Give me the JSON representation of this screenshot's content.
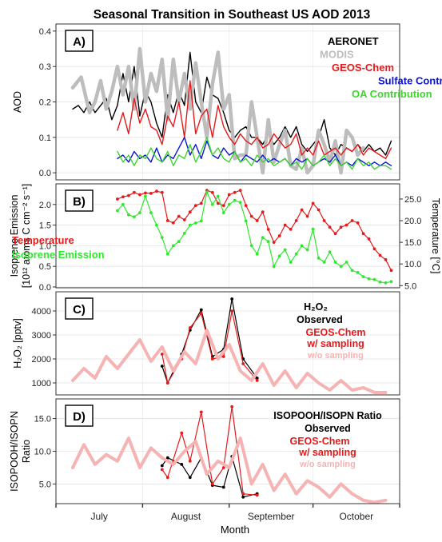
{
  "title": "Seasonal Transition in Southeast US AOD 2013",
  "x_axis": {
    "label": "Month",
    "month_labels": [
      "July",
      "August",
      "September",
      "October"
    ]
  },
  "colors": {
    "aeronet": "#000000",
    "modis": "#bdbdbd",
    "geos": "#e41a1c",
    "sulfate": "#0a14d8",
    "oa": "#3fd62b",
    "temperature": "#e41a1c",
    "isoprene": "#2ee82e",
    "observed": "#000000",
    "geos_sampling": "#e41a1c",
    "geos_nosampling": "#f6b3b3"
  },
  "chart_data": [
    {
      "type": "line",
      "panel": "A)",
      "ylabel": "AOD",
      "ylim": [
        -0.02,
        0.42
      ],
      "yticks": [
        "0.0",
        "0.1",
        "0.2",
        "0.3",
        "0.4"
      ],
      "ytick_values": [
        0,
        0.1,
        0.2,
        0.3,
        0.4
      ],
      "legend": [
        "AERONET",
        "MODIS",
        "GEOS-Chem",
        "Sulfate Contribution",
        "OA Contribution"
      ],
      "series": [
        {
          "name": "AERONET",
          "x": [
            6,
            8,
            10,
            12,
            14,
            16,
            18,
            20,
            22,
            24,
            26,
            28,
            30,
            32,
            34,
            36,
            38,
            40,
            42,
            44,
            46,
            48,
            50,
            52,
            54,
            56,
            58,
            60,
            62,
            64,
            66,
            68,
            70,
            72,
            74,
            76,
            78,
            80,
            82,
            84,
            86,
            88,
            90,
            92,
            94,
            96,
            98,
            100,
            102,
            104,
            106,
            108,
            110,
            112,
            114,
            116,
            118,
            120
          ],
          "y": [
            0.18,
            0.19,
            0.17,
            0.2,
            0.17,
            0.19,
            0.21,
            0.15,
            0.19,
            0.28,
            0.2,
            0.3,
            0.16,
            0.23,
            0.2,
            0.14,
            0.1,
            0.22,
            0.17,
            0.23,
            0.19,
            0.34,
            0.2,
            0.17,
            0.27,
            0.22,
            0.21,
            0.17,
            0.12,
            0.1,
            0.12,
            0.13,
            0.1,
            0.1,
            0.08,
            0.11,
            0.08,
            0.1,
            0.13,
            0.1,
            0.13,
            0.08,
            0.06,
            0.08,
            0.1,
            0.15,
            0.07,
            0.05,
            0.08,
            0.07,
            0.06,
            0.08,
            0.06,
            0.08,
            0.06,
            0.07,
            0.05,
            0.09
          ]
        },
        {
          "name": "MODIS",
          "x": [
            6,
            9,
            12,
            14,
            16,
            18,
            20,
            22,
            24,
            26,
            28,
            30,
            32,
            34,
            36,
            38,
            40,
            42,
            44,
            46,
            48,
            50,
            52,
            54,
            56,
            58,
            60,
            62,
            64,
            66,
            68,
            70,
            72,
            74,
            76,
            78,
            80,
            82,
            84,
            86,
            88,
            90,
            92,
            94,
            96,
            98,
            100,
            102,
            104,
            106,
            108,
            110
          ],
          "y": [
            0.24,
            0.27,
            0.17,
            0.2,
            0.26,
            0.18,
            0.23,
            0.3,
            0.22,
            0.3,
            0.18,
            0.35,
            0.2,
            0.28,
            0.23,
            0.32,
            0.15,
            0.32,
            0.2,
            0.28,
            0.18,
            0.31,
            0.2,
            0.1,
            0.25,
            0.34,
            0.18,
            0.22,
            0.04,
            0.05,
            0.05,
            0.2,
            0.1,
            0.0,
            0.15,
            0.03,
            0.08,
            0.12,
            0.02,
            0.01,
            0.07,
            0.0,
            0.02,
            0.12,
            0.08,
            0.03,
            0.09,
            0.0,
            0.12,
            0.1,
            0.05,
            0.07
          ]
        },
        {
          "name": "GEOS-Chem",
          "x": [
            22,
            24,
            26,
            28,
            30,
            32,
            34,
            36,
            38,
            40,
            42,
            44,
            46,
            48,
            50,
            52,
            54,
            56,
            58,
            60,
            62,
            64,
            66,
            68,
            70,
            72,
            74,
            76,
            78,
            80,
            82,
            84,
            86,
            88,
            90,
            92,
            94,
            96,
            98,
            100,
            102,
            104,
            106,
            108,
            110,
            112,
            114,
            116,
            118,
            120
          ],
          "y": [
            0.12,
            0.17,
            0.11,
            0.21,
            0.14,
            0.18,
            0.13,
            0.12,
            0.08,
            0.16,
            0.13,
            0.2,
            0.1,
            0.26,
            0.11,
            0.16,
            0.18,
            0.1,
            0.19,
            0.13,
            0.1,
            0.08,
            0.11,
            0.09,
            0.08,
            0.1,
            0.07,
            0.08,
            0.11,
            0.09,
            0.07,
            0.08,
            0.11,
            0.05,
            0.07,
            0.05,
            0.09,
            0.05,
            0.06,
            0.07,
            0.05,
            0.07,
            0.06,
            0.08,
            0.05,
            0.07,
            0.06,
            0.05,
            0.04,
            0.07
          ]
        },
        {
          "name": "Sulfate Contribution",
          "x": [
            22,
            24,
            26,
            28,
            30,
            32,
            34,
            36,
            38,
            40,
            42,
            44,
            46,
            48,
            50,
            52,
            54,
            56,
            58,
            60,
            62,
            64,
            66,
            68,
            70,
            72,
            74,
            76,
            78,
            80,
            82,
            84,
            86,
            88,
            90,
            92,
            94,
            96,
            98,
            100,
            102,
            104,
            106,
            108,
            110,
            112,
            114,
            116,
            118,
            120
          ],
          "y": [
            0.04,
            0.05,
            0.03,
            0.06,
            0.04,
            0.05,
            0.03,
            0.07,
            0.03,
            0.05,
            0.04,
            0.07,
            0.1,
            0.05,
            0.08,
            0.04,
            0.09,
            0.05,
            0.04,
            0.07,
            0.05,
            0.06,
            0.03,
            0.05,
            0.04,
            0.03,
            0.05,
            0.03,
            0.04,
            0.03,
            0.04,
            0.02,
            0.04,
            0.03,
            0.04,
            0.02,
            0.03,
            0.04,
            0.03,
            0.05,
            0.02,
            0.03,
            0.02,
            0.04,
            0.03,
            0.02,
            0.03,
            0.02,
            0.03,
            0.02
          ]
        },
        {
          "name": "OA Contribution",
          "x": [
            22,
            24,
            26,
            28,
            30,
            32,
            34,
            36,
            38,
            40,
            42,
            44,
            46,
            48,
            50,
            52,
            54,
            56,
            58,
            60,
            62,
            64,
            66,
            68,
            70,
            72,
            74,
            76,
            78,
            80,
            82,
            84,
            86,
            88,
            90,
            92,
            94,
            96,
            98,
            100,
            102,
            104,
            106,
            108,
            110,
            112,
            114,
            116,
            118,
            120
          ],
          "y": [
            0.06,
            0.03,
            0.05,
            0.02,
            0.05,
            0.04,
            0.07,
            0.04,
            0.03,
            0.06,
            0.02,
            0.05,
            0.04,
            0.08,
            0.03,
            0.06,
            0.1,
            0.05,
            0.07,
            0.04,
            0.03,
            0.06,
            0.03,
            0.04,
            0.02,
            0.05,
            0.03,
            0.04,
            0.02,
            0.03,
            0.04,
            0.02,
            0.03,
            0.01,
            0.04,
            0.02,
            0.03,
            0.05,
            0.02,
            0.04,
            0.02,
            0.03,
            0.01,
            0.04,
            0.02,
            0.03,
            0.01,
            0.02,
            0.02,
            0.01
          ]
        }
      ]
    },
    {
      "type": "line",
      "panel": "B)",
      "ylabel": "Isoprene Emission",
      "ylabel_line2": "[10¹² atoms C cm⁻² s⁻¹]",
      "ylim": [
        -0.02,
        2.5
      ],
      "yticks": [
        "0.0",
        "0.5",
        "1.0",
        "1.5",
        "2.0"
      ],
      "ytick_values": [
        0,
        0.5,
        1.0,
        1.5,
        2.0
      ],
      "right_ylabel": "Temperature [°C]",
      "right_ylim": [
        4.5,
        28.5
      ],
      "right_yticks": [
        "5.0",
        "10.0",
        "15.0",
        "20.0",
        "25.0"
      ],
      "right_ytick_values": [
        5,
        10,
        15,
        20,
        25
      ],
      "legend": [
        "Temperature",
        "Isoprene Emission"
      ],
      "series": [
        {
          "name": "Temperature",
          "axis": "right",
          "x": [
            22,
            24,
            26,
            28,
            30,
            32,
            34,
            36,
            38,
            40,
            42,
            44,
            46,
            48,
            50,
            52,
            54,
            56,
            58,
            60,
            62,
            64,
            66,
            68,
            70,
            72,
            74,
            76,
            78,
            80,
            82,
            84,
            86,
            88,
            90,
            92,
            94,
            96,
            98,
            100,
            102,
            104,
            106,
            108,
            110,
            112,
            114,
            116,
            118,
            120
          ],
          "y": [
            25,
            25.5,
            25.8,
            26.5,
            26,
            26.4,
            26.3,
            26.8,
            26.5,
            20,
            19.5,
            21,
            20.2,
            22,
            23.5,
            24,
            27,
            26.5,
            24,
            23.5,
            26,
            26.5,
            27,
            23.5,
            21,
            20,
            22,
            18,
            15,
            16.5,
            19,
            18,
            20,
            22.5,
            21,
            24,
            22.5,
            20,
            18.5,
            17,
            18.5,
            19,
            20,
            19.5,
            17,
            15.8,
            13.5,
            12,
            11,
            8.5
          ]
        },
        {
          "name": "Isoprene Emission",
          "axis": "left",
          "x": [
            22,
            24,
            26,
            28,
            30,
            32,
            34,
            36,
            38,
            40,
            42,
            44,
            46,
            48,
            50,
            52,
            54,
            56,
            58,
            60,
            62,
            64,
            66,
            68,
            70,
            72,
            74,
            76,
            78,
            80,
            82,
            84,
            86,
            88,
            90,
            92,
            94,
            96,
            98,
            100,
            102,
            104,
            106,
            108,
            110,
            112,
            114,
            116,
            118,
            120
          ],
          "y": [
            1.85,
            2.0,
            1.75,
            1.7,
            1.8,
            2.2,
            1.8,
            1.5,
            1.2,
            0.8,
            1.0,
            1.1,
            1.3,
            1.5,
            1.55,
            1.6,
            2.3,
            2.0,
            2.2,
            1.8,
            2.0,
            2.1,
            2.05,
            1.6,
            1.0,
            0.8,
            1.2,
            1.1,
            0.5,
            0.75,
            0.9,
            0.6,
            0.8,
            1.0,
            0.9,
            1.4,
            0.7,
            0.6,
            0.85,
            0.6,
            0.5,
            0.6,
            0.4,
            0.35,
            0.25,
            0.2,
            0.18,
            0.12,
            0.1,
            0.13
          ]
        }
      ]
    },
    {
      "type": "line",
      "panel": "C)",
      "ylabel": "H₂O₂ [pptv]",
      "ylim": [
        500,
        4800
      ],
      "yticks": [
        "1000",
        "2000",
        "3000",
        "4000"
      ],
      "ytick_values": [
        1000,
        2000,
        3000,
        4000
      ],
      "legend_title": "H₂O₂",
      "legend": [
        "Observed",
        "GEOS-Chem",
        "w/ sampling",
        "w/o sampling"
      ],
      "series": [
        {
          "name": "Observed",
          "x": [
            38,
            40,
            45,
            48,
            52,
            56,
            60,
            63,
            67,
            72
          ],
          "y": [
            1700,
            1000,
            2200,
            3200,
            4050,
            2100,
            2400,
            4500,
            2000,
            1200
          ]
        },
        {
          "name": "w/ sampling",
          "x": [
            38,
            40,
            45,
            48,
            52,
            56,
            60,
            63,
            67,
            72
          ],
          "y": [
            2200,
            1000,
            2000,
            3300,
            3900,
            2000,
            2100,
            4000,
            1800,
            1100
          ]
        },
        {
          "name": "w/o sampling",
          "x": [
            6,
            10,
            14,
            18,
            22,
            26,
            30,
            34,
            38,
            42,
            46,
            50,
            54,
            58,
            62,
            66,
            70,
            74,
            78,
            82,
            86,
            90,
            94,
            98,
            102,
            106,
            110,
            114,
            118
          ],
          "y": [
            1100,
            1600,
            1200,
            2100,
            1600,
            2200,
            2800,
            1900,
            2500,
            1500,
            2300,
            1800,
            3200,
            2000,
            2600,
            1500,
            1100,
            1800,
            900,
            1500,
            800,
            1400,
            1000,
            700,
            1100,
            700,
            800,
            600,
            600
          ]
        }
      ]
    },
    {
      "type": "line",
      "panel": "D)",
      "ylabel": "ISOPOOH/ISOPN",
      "ylabel_line2": "Ratio",
      "ylim": [
        2,
        18
      ],
      "yticks": [
        "5.0",
        "10.0",
        "15.0"
      ],
      "ytick_values": [
        5,
        10,
        15
      ],
      "legend_title": "ISOPOOH/ISOPN Ratio",
      "legend": [
        "Observed",
        "GEOS-Chem",
        "w/ sampling",
        "w/o sampling"
      ],
      "series": [
        {
          "name": "Observed",
          "x": [
            38,
            40,
            45,
            48,
            52,
            56,
            60,
            63,
            67,
            72
          ],
          "y": [
            7.8,
            9.0,
            8.0,
            6.0,
            9.0,
            4.8,
            4.5,
            9.2,
            3.0,
            3.5
          ]
        },
        {
          "name": "w/ sampling",
          "x": [
            38,
            40,
            45,
            48,
            52,
            56,
            60,
            63,
            67,
            72
          ],
          "y": [
            7.2,
            6.0,
            12.8,
            8.5,
            16.0,
            5.0,
            7.5,
            16.8,
            3.5,
            3.3
          ]
        },
        {
          "name": "w/o sampling",
          "x": [
            6,
            10,
            14,
            18,
            22,
            26,
            30,
            34,
            38,
            42,
            46,
            50,
            54,
            58,
            62,
            66,
            70,
            74,
            78,
            82,
            86,
            90,
            94,
            98,
            102,
            106,
            110,
            114,
            118
          ],
          "y": [
            7.5,
            11,
            8,
            9.5,
            8.5,
            12,
            7.5,
            10.5,
            9,
            8,
            10,
            11.5,
            6.5,
            8.5,
            7.5,
            12,
            5,
            8,
            4,
            6.5,
            3.5,
            5.5,
            4.5,
            3,
            5,
            3.5,
            2.5,
            2.2,
            2.5
          ]
        }
      ]
    }
  ]
}
